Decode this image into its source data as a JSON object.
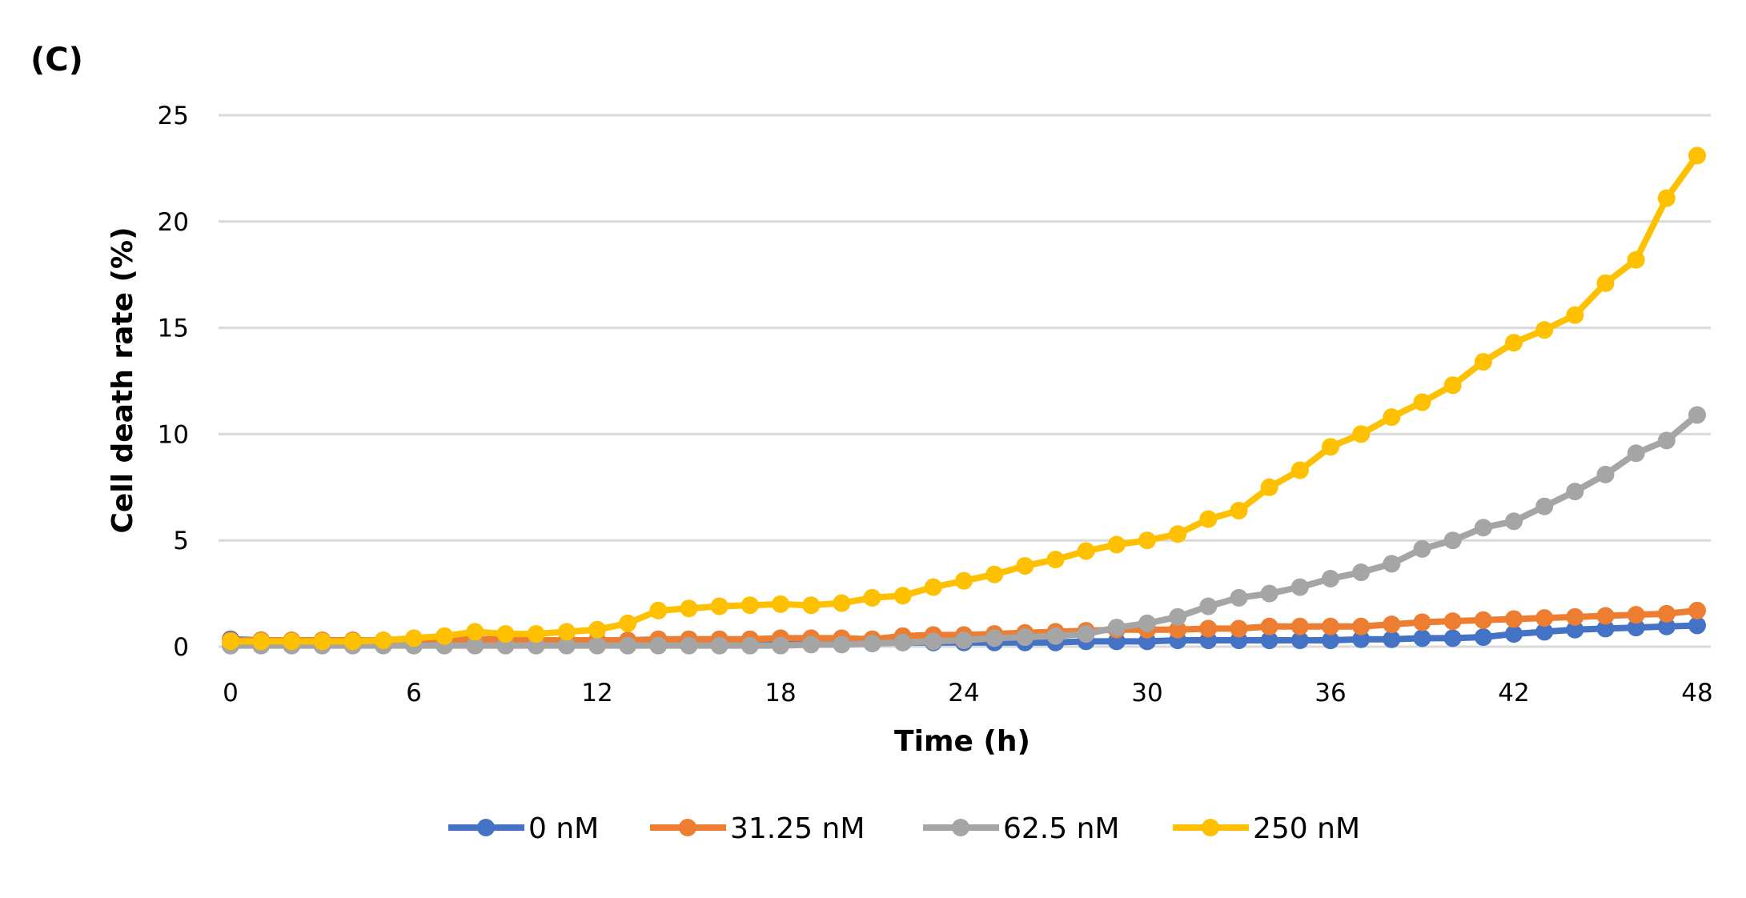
{
  "panel_label": "(C)",
  "chart_data": {
    "type": "line",
    "title": "",
    "xlabel": "Time (h)",
    "ylabel": "Cell death rate (%)",
    "xlim": [
      0,
      48
    ],
    "ylim": [
      0,
      25
    ],
    "xticks": [
      "0",
      "6",
      "12",
      "18",
      "24",
      "30",
      "36",
      "42",
      "48"
    ],
    "yticks": [
      "0",
      "5",
      "10",
      "15",
      "20",
      "25"
    ],
    "grid": "horizontal",
    "legend_position": "bottom",
    "x": [
      0,
      1,
      2,
      3,
      4,
      5,
      6,
      7,
      8,
      9,
      10,
      11,
      12,
      13,
      14,
      15,
      16,
      17,
      18,
      19,
      20,
      21,
      22,
      23,
      24,
      25,
      26,
      27,
      28,
      29,
      30,
      31,
      32,
      33,
      34,
      35,
      36,
      37,
      38,
      39,
      40,
      41,
      42,
      43,
      44,
      45,
      46,
      47,
      48
    ],
    "series": [
      {
        "name": "0 nM",
        "color": "#4472C4",
        "values": [
          0.35,
          0.3,
          0.2,
          0.2,
          0.15,
          0.15,
          0.15,
          0.15,
          0.15,
          0.1,
          0.1,
          0.1,
          0.1,
          0.1,
          0.15,
          0.15,
          0.15,
          0.15,
          0.15,
          0.15,
          0.15,
          0.15,
          0.2,
          0.2,
          0.2,
          0.2,
          0.2,
          0.2,
          0.25,
          0.25,
          0.25,
          0.3,
          0.3,
          0.3,
          0.3,
          0.3,
          0.3,
          0.35,
          0.35,
          0.4,
          0.4,
          0.45,
          0.6,
          0.7,
          0.8,
          0.85,
          0.9,
          0.95,
          1.0
        ]
      },
      {
        "name": "31.25 nM",
        "color": "#ED7D31",
        "values": [
          0.3,
          0.3,
          0.3,
          0.3,
          0.3,
          0.3,
          0.35,
          0.35,
          0.35,
          0.35,
          0.3,
          0.3,
          0.3,
          0.3,
          0.35,
          0.35,
          0.35,
          0.35,
          0.4,
          0.4,
          0.4,
          0.35,
          0.5,
          0.55,
          0.55,
          0.6,
          0.65,
          0.7,
          0.75,
          0.8,
          0.8,
          0.8,
          0.85,
          0.85,
          0.95,
          0.95,
          0.95,
          0.95,
          1.05,
          1.15,
          1.2,
          1.25,
          1.3,
          1.35,
          1.4,
          1.45,
          1.5,
          1.55,
          1.7
        ]
      },
      {
        "name": "62.5 nM",
        "color": "#A5A5A5",
        "values": [
          0.05,
          0.05,
          0.05,
          0.05,
          0.05,
          0.05,
          0.05,
          0.05,
          0.05,
          0.05,
          0.05,
          0.05,
          0.05,
          0.05,
          0.05,
          0.05,
          0.05,
          0.05,
          0.05,
          0.1,
          0.1,
          0.15,
          0.2,
          0.25,
          0.3,
          0.4,
          0.45,
          0.5,
          0.6,
          0.9,
          1.1,
          1.4,
          1.9,
          2.3,
          2.5,
          2.8,
          3.2,
          3.5,
          3.9,
          4.6,
          5.0,
          5.6,
          5.9,
          6.6,
          7.3,
          8.1,
          9.1,
          9.7,
          10.9
        ]
      },
      {
        "name": "250 nM",
        "color": "#FFC000",
        "values": [
          0.25,
          0.25,
          0.25,
          0.25,
          0.25,
          0.3,
          0.4,
          0.5,
          0.7,
          0.6,
          0.6,
          0.7,
          0.8,
          1.1,
          1.7,
          1.8,
          1.9,
          1.95,
          2.0,
          1.95,
          2.05,
          2.3,
          2.4,
          2.8,
          3.1,
          3.4,
          3.8,
          4.1,
          4.5,
          4.8,
          5.0,
          5.3,
          6.0,
          6.4,
          7.5,
          8.3,
          9.4,
          10.0,
          10.8,
          11.5,
          12.3,
          13.4,
          14.3,
          14.9,
          15.6,
          17.1,
          18.2,
          21.1,
          23.1
        ]
      }
    ]
  }
}
